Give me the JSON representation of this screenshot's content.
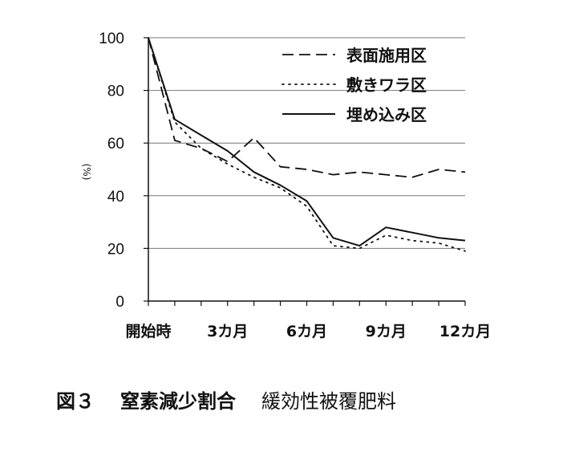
{
  "chart_data": {
    "type": "line",
    "ylabel": "(%)",
    "xlabel": "",
    "ylim": [
      0,
      100
    ],
    "yticks": [
      0,
      20,
      40,
      60,
      80,
      100
    ],
    "grid": "horizontal",
    "legend_position": "top-right",
    "x_labels": [
      {
        "x": 0,
        "label": "開始時"
      },
      {
        "x": 3,
        "label": "3カ月"
      },
      {
        "x": 6,
        "label": "6カ月"
      },
      {
        "x": 9,
        "label": "9カ月"
      },
      {
        "x": 12,
        "label": "12カ月"
      }
    ],
    "xlim": [
      0,
      12
    ],
    "series": [
      {
        "name": "表面施用区",
        "style": "dashed",
        "x": [
          0,
          1,
          2,
          3,
          4,
          5,
          6,
          7,
          8,
          9,
          10,
          11,
          12
        ],
        "values": [
          100,
          61,
          58,
          53,
          62,
          51,
          50,
          48,
          49,
          48,
          47,
          50,
          49
        ]
      },
      {
        "name": "敷きワラ区",
        "style": "dotted",
        "x": [
          0,
          1,
          2,
          3,
          4,
          5,
          6,
          7,
          8,
          9,
          10,
          11,
          12
        ],
        "values": [
          100,
          68,
          58,
          52,
          47,
          43,
          36,
          21,
          20,
          25,
          23,
          22,
          19
        ]
      },
      {
        "name": "埋め込み区",
        "style": "solid",
        "x": [
          0,
          1,
          2,
          3,
          4,
          5,
          6,
          7,
          8,
          9,
          10,
          11,
          12
        ],
        "values": [
          100,
          69,
          63,
          57,
          49,
          44,
          38,
          24,
          21,
          28,
          26,
          24,
          23
        ]
      }
    ]
  },
  "caption": {
    "number": "図３",
    "title": "窒素減少割合",
    "subtitle": "緩効性被覆肥料"
  }
}
